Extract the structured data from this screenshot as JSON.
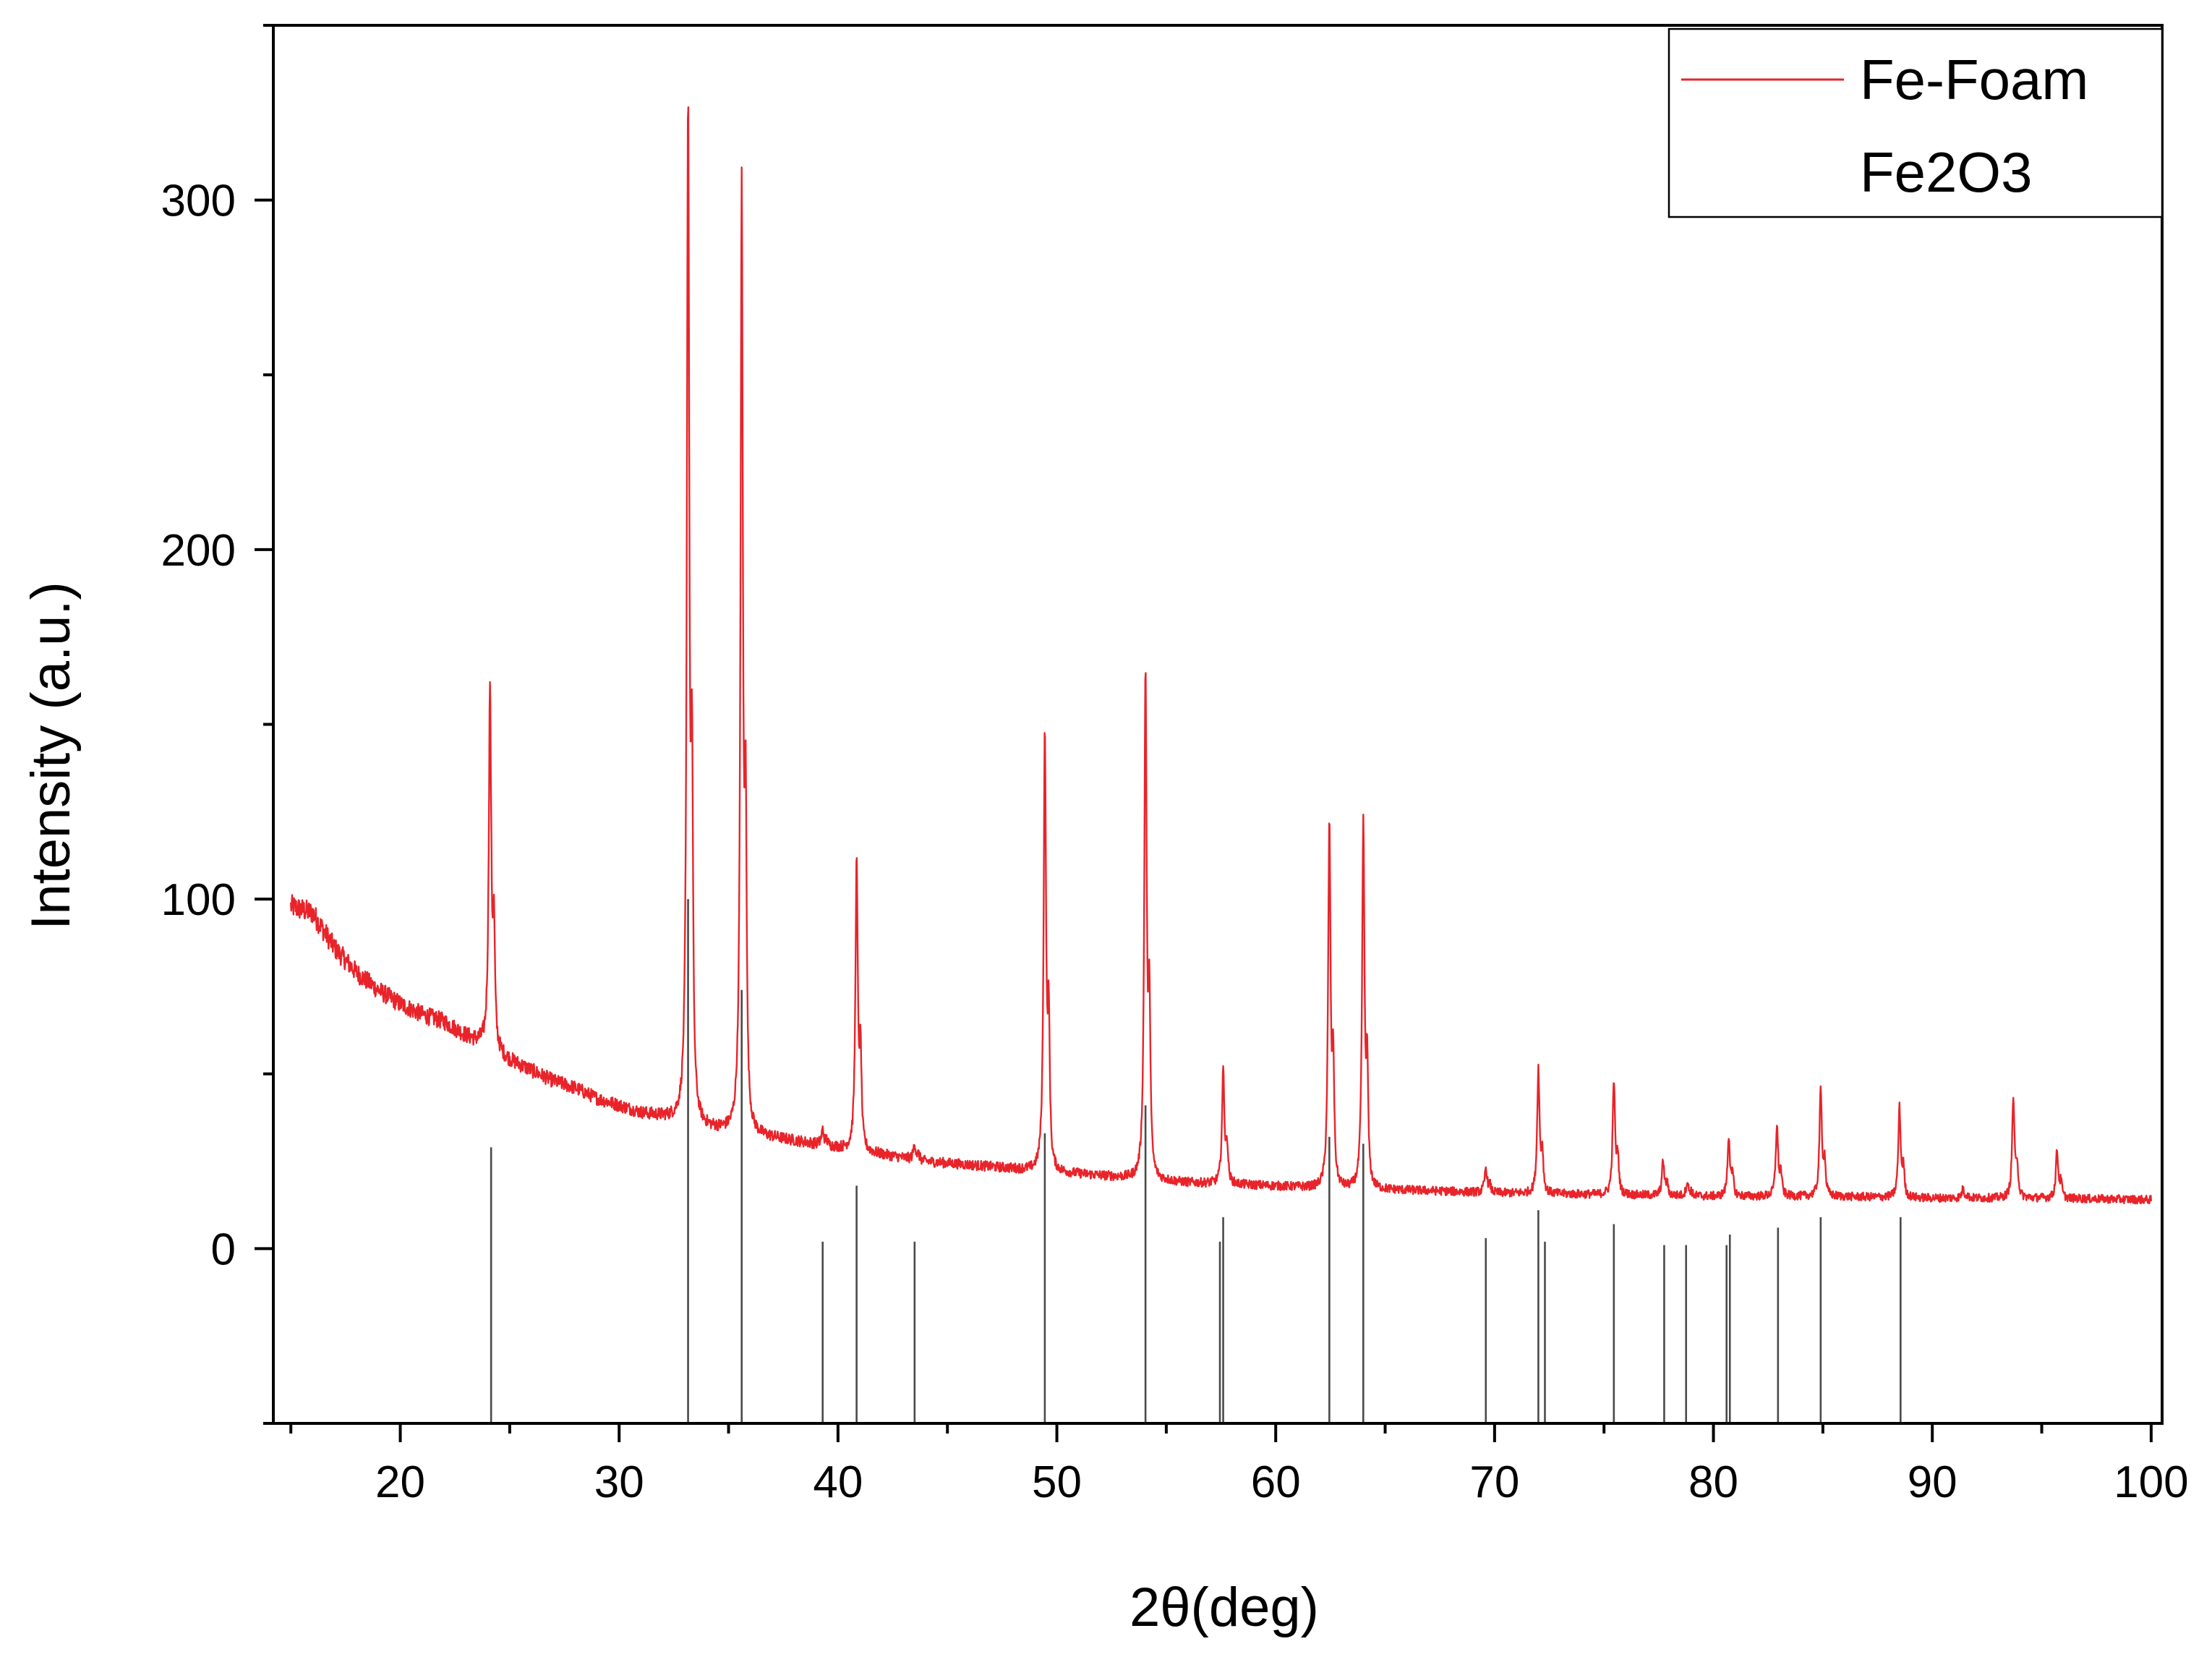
{
  "chart_data": {
    "type": "line",
    "xlabel": "2θ(deg)",
    "ylabel": "Intensity (a.u.)",
    "xlim": [
      14.2,
      100.5
    ],
    "ylim": [
      -50,
      350
    ],
    "x_ticks": [
      20,
      30,
      40,
      50,
      60,
      70,
      80,
      90,
      100
    ],
    "y_ticks": [
      0,
      100,
      200,
      300
    ],
    "grid": false,
    "legend_position": "top-right",
    "series": [
      {
        "name": "Fe-Foam",
        "style": "line",
        "color": "#e8242a",
        "background": [
          [
            15,
            98
          ],
          [
            16,
            96
          ],
          [
            17,
            86
          ],
          [
            18,
            79
          ],
          [
            19,
            74
          ],
          [
            20,
            70
          ],
          [
            21,
            67
          ],
          [
            22,
            65
          ],
          [
            23,
            61
          ],
          [
            24,
            58
          ],
          [
            25,
            54
          ],
          [
            26,
            51
          ],
          [
            27,
            48
          ],
          [
            28,
            46
          ],
          [
            29,
            43
          ],
          [
            30,
            41
          ],
          [
            31,
            39
          ],
          [
            32,
            38
          ],
          [
            33,
            37
          ],
          [
            34,
            35
          ],
          [
            35,
            34
          ],
          [
            36,
            33
          ],
          [
            37,
            32
          ],
          [
            38,
            31
          ],
          [
            39,
            30
          ],
          [
            40,
            29
          ],
          [
            42,
            27
          ],
          [
            44,
            25
          ],
          [
            46,
            24
          ],
          [
            48,
            23
          ],
          [
            50,
            22
          ],
          [
            52,
            21
          ],
          [
            54,
            20
          ],
          [
            56,
            19
          ],
          [
            58,
            18.5
          ],
          [
            60,
            18
          ],
          [
            62,
            17.5
          ],
          [
            65,
            17
          ],
          [
            70,
            16
          ],
          [
            75,
            15.5
          ],
          [
            80,
            15
          ],
          [
            85,
            15
          ],
          [
            90,
            14.5
          ],
          [
            95,
            14.5
          ],
          [
            100,
            14
          ]
        ],
        "peaks": [
          {
            "x": 24.1,
            "y": 160
          },
          {
            "x": 33.15,
            "y": 325
          },
          {
            "x": 35.6,
            "y": 300
          },
          {
            "x": 39.3,
            "y": 34
          },
          {
            "x": 40.85,
            "y": 110
          },
          {
            "x": 43.5,
            "y": 30
          },
          {
            "x": 49.45,
            "y": 147
          },
          {
            "x": 54.05,
            "y": 164
          },
          {
            "x": 57.6,
            "y": 51
          },
          {
            "x": 62.45,
            "y": 121
          },
          {
            "x": 64.0,
            "y": 121
          },
          {
            "x": 69.6,
            "y": 23
          },
          {
            "x": 72.0,
            "y": 51
          },
          {
            "x": 75.45,
            "y": 48
          },
          {
            "x": 77.7,
            "y": 25
          },
          {
            "x": 78.8,
            "y": 19
          },
          {
            "x": 80.7,
            "y": 32
          },
          {
            "x": 82.9,
            "y": 35
          },
          {
            "x": 84.9,
            "y": 45
          },
          {
            "x": 88.5,
            "y": 40
          },
          {
            "x": 91.4,
            "y": 17
          },
          {
            "x": 93.7,
            "y": 43
          },
          {
            "x": 95.7,
            "y": 28
          }
        ]
      },
      {
        "name": "Fe2O3",
        "style": "sticks",
        "color": "#4a4a4a",
        "sticks": [
          {
            "x": 24.15,
            "y": 29
          },
          {
            "x": 33.15,
            "y": 100
          },
          {
            "x": 35.6,
            "y": 74
          },
          {
            "x": 39.3,
            "y": 2
          },
          {
            "x": 40.85,
            "y": 18
          },
          {
            "x": 43.5,
            "y": 2
          },
          {
            "x": 49.45,
            "y": 33
          },
          {
            "x": 54.05,
            "y": 41
          },
          {
            "x": 57.45,
            "y": 2
          },
          {
            "x": 57.6,
            "y": 9
          },
          {
            "x": 62.45,
            "y": 32
          },
          {
            "x": 64.0,
            "y": 30
          },
          {
            "x": 69.6,
            "y": 3
          },
          {
            "x": 72.0,
            "y": 11
          },
          {
            "x": 72.3,
            "y": 2
          },
          {
            "x": 75.45,
            "y": 7
          },
          {
            "x": 77.75,
            "y": 1
          },
          {
            "x": 78.75,
            "y": 1
          },
          {
            "x": 80.6,
            "y": 1
          },
          {
            "x": 80.75,
            "y": 4
          },
          {
            "x": 82.95,
            "y": 6
          },
          {
            "x": 84.9,
            "y": 9
          },
          {
            "x": 88.55,
            "y": 9
          }
        ]
      }
    ]
  }
}
